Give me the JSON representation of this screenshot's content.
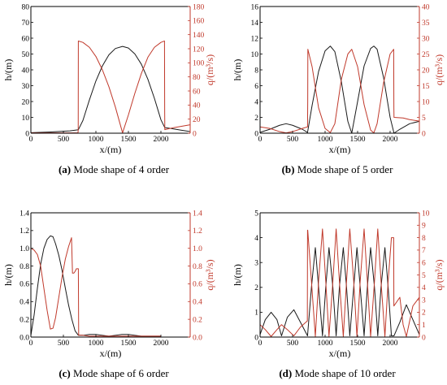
{
  "colors": {
    "h_series": "#1a1a1a",
    "q_series": "#c0392b",
    "axis": "#000000",
    "q_axis": "#c0392b"
  },
  "chart_data": [
    {
      "id": "a",
      "type": "line",
      "caption_prefix": "(a)",
      "caption_text": " Mode shape of 4 order",
      "xlabel": "x/(m)",
      "ylabel_left": "h/(m)",
      "ylabel_right": "q/(m³/s)",
      "xlim": [
        0,
        2450
      ],
      "xticks": [
        0,
        500,
        1000,
        1500,
        2000
      ],
      "ylim_left": [
        0,
        80
      ],
      "yticks_left": [
        0,
        10,
        20,
        30,
        40,
        50,
        60,
        70,
        80
      ],
      "ylim_right": [
        0,
        180
      ],
      "yticks_right": [
        0,
        20,
        40,
        60,
        80,
        100,
        120,
        140,
        160,
        180
      ],
      "grid": false,
      "series": [
        {
          "axis": "left",
          "x": [
            0,
            300,
            600,
            730,
            800,
            900,
            1000,
            1100,
            1200,
            1300,
            1410,
            1500,
            1600,
            1700,
            1800,
            1900,
            2000,
            2060,
            2150,
            2300,
            2450
          ],
          "y": [
            0.3,
            0.8,
            1.5,
            2.2,
            8.0,
            21.0,
            33.0,
            42.5,
            49.5,
            53.5,
            54.8,
            53.8,
            50.0,
            43.5,
            34.0,
            22.0,
            8.5,
            3.5,
            3.0,
            2.0,
            1.0
          ]
        },
        {
          "axis": "right",
          "x": [
            0,
            300,
            600,
            725,
            728,
            730,
            800,
            900,
            1000,
            1100,
            1200,
            1300,
            1410,
            1500,
            1600,
            1700,
            1800,
            1900,
            2000,
            2055,
            2058,
            2060,
            2200,
            2450
          ],
          "y": [
            0.5,
            0.5,
            0.5,
            0.5,
            6,
            131,
            129,
            122,
            109,
            90,
            66,
            37,
            0.5,
            26,
            57,
            85,
            108,
            122,
            129,
            131,
            30,
            5,
            8,
            12
          ]
        }
      ]
    },
    {
      "id": "b",
      "type": "line",
      "caption_prefix": "(b)",
      "caption_text": " Mode shape of 5 order",
      "xlabel": "x/(m)",
      "ylabel_left": "h/(m)",
      "ylabel_right": "q/(m³/s)",
      "xlim": [
        0,
        2450
      ],
      "xticks": [
        0,
        500,
        1000,
        1500,
        2000
      ],
      "ylim_left": [
        0,
        16
      ],
      "yticks_left": [
        0,
        2,
        4,
        6,
        8,
        10,
        12,
        14,
        16
      ],
      "ylim_right": [
        0,
        40
      ],
      "yticks_right": [
        0,
        5,
        10,
        15,
        20,
        25,
        30,
        35,
        40
      ],
      "grid": false,
      "series": [
        {
          "axis": "left",
          "x": [
            0,
            150,
            300,
            400,
            500,
            650,
            730,
            800,
            900,
            1000,
            1080,
            1150,
            1250,
            1350,
            1410,
            1500,
            1600,
            1700,
            1750,
            1800,
            1900,
            2000,
            2060,
            2150,
            2300,
            2450
          ],
          "y": [
            0.1,
            0.5,
            1.0,
            1.2,
            1.0,
            0.5,
            0.1,
            3.5,
            7.8,
            10.4,
            11.0,
            10.3,
            6.5,
            1.5,
            0.0,
            4.0,
            8.5,
            10.7,
            11.0,
            10.6,
            7.0,
            2.0,
            0.0,
            0.5,
            1.2,
            1.5
          ]
        },
        {
          "axis": "right",
          "x": [
            0,
            150,
            300,
            400,
            500,
            650,
            730,
            733,
            735,
            800,
            900,
            1000,
            1080,
            1150,
            1250,
            1350,
            1410,
            1500,
            1600,
            1700,
            1750,
            1800,
            1900,
            2000,
            2055,
            2058,
            2060,
            2200,
            2300,
            2450
          ],
          "y": [
            2.0,
            1.5,
            0.5,
            0.1,
            0.5,
            1.5,
            2.0,
            10,
            26.5,
            21,
            8,
            1.5,
            0.2,
            3,
            17,
            25,
            26.5,
            21,
            9,
            1,
            0.1,
            3,
            16,
            25,
            26.5,
            8,
            5,
            4.8,
            4.3,
            3.8
          ]
        }
      ]
    },
    {
      "id": "c",
      "type": "line",
      "caption_prefix": "(c)",
      "caption_text": " Mode shape of 6 order",
      "xlabel": "x/(m)",
      "ylabel_left": "h/(m)",
      "ylabel_right": "q/(m³/s)",
      "xlim": [
        0,
        2450
      ],
      "xticks": [
        0,
        500,
        1000,
        1500,
        2000
      ],
      "ylim_left": [
        0,
        1.4
      ],
      "yticks_left": [
        0.0,
        0.2,
        0.4,
        0.6,
        0.8,
        1.0,
        1.2,
        1.4
      ],
      "ylim_right": [
        0,
        1.4
      ],
      "yticks_right": [
        0.0,
        0.2,
        0.4,
        0.6,
        0.8,
        1.0,
        1.2,
        1.4
      ],
      "grid": false,
      "series": [
        {
          "axis": "left",
          "x": [
            0,
            50,
            100,
            150,
            200,
            250,
            300,
            340,
            380,
            430,
            480,
            530,
            580,
            630,
            680,
            730,
            800,
            900,
            1000,
            1100,
            1200,
            1300,
            1400,
            1500,
            1600,
            1700,
            1800,
            1900,
            2000
          ],
          "y": [
            0.02,
            0.25,
            0.55,
            0.82,
            1.0,
            1.1,
            1.14,
            1.13,
            1.05,
            0.92,
            0.75,
            0.55,
            0.36,
            0.2,
            0.07,
            0.02,
            0.02,
            0.03,
            0.03,
            0.02,
            0.01,
            0.02,
            0.03,
            0.03,
            0.02,
            0.01,
            0.01,
            0.01,
            0.01
          ]
        },
        {
          "axis": "right",
          "x": [
            0,
            50,
            100,
            150,
            200,
            250,
            300,
            340,
            380,
            430,
            480,
            530,
            580,
            625,
            640,
            660,
            680,
            700,
            730,
            735,
            800,
            900,
            1000,
            1100,
            1200,
            1300,
            1400,
            1500,
            1600,
            1700,
            1800,
            1900,
            2000
          ],
          "y": [
            1.0,
            0.98,
            0.93,
            0.8,
            0.55,
            0.3,
            0.09,
            0.1,
            0.22,
            0.45,
            0.68,
            0.88,
            1.02,
            1.12,
            0.72,
            0.72,
            0.74,
            0.77,
            0.77,
            0.02,
            0.02,
            0.01,
            0.01,
            0.01,
            0.01,
            0.01,
            0.01,
            0.01,
            0.01,
            0.01,
            0.01,
            0.01,
            0.01
          ]
        }
      ]
    },
    {
      "id": "d",
      "type": "line",
      "caption_prefix": "(d)",
      "caption_text": " Mode shape of 10 order",
      "xlabel": "x/(m)",
      "ylabel_left": "h/(m)",
      "ylabel_right": "q/(m³/s)",
      "xlim": [
        0,
        2450
      ],
      "xticks": [
        0,
        500,
        1000,
        1500,
        2000
      ],
      "ylim_left": [
        0,
        5
      ],
      "yticks_left": [
        0,
        1,
        2,
        3,
        4,
        5
      ],
      "ylim_right": [
        0,
        10
      ],
      "yticks_right": [
        0,
        1,
        2,
        3,
        4,
        5,
        6,
        7,
        8,
        9,
        10
      ],
      "grid": false,
      "series": [
        {
          "axis": "left",
          "x": [
            0,
            80,
            170,
            260,
            330,
            420,
            520,
            620,
            730,
            790,
            850,
            900,
            960,
            1010,
            1060,
            1120,
            1170,
            1220,
            1280,
            1330,
            1380,
            1440,
            1490,
            1540,
            1600,
            1650,
            1700,
            1760,
            1810,
            1860,
            1920,
            1970,
            2020,
            2060,
            2150,
            2250,
            2350,
            2450
          ],
          "y": [
            0.1,
            0.7,
            1.0,
            0.7,
            0.05,
            0.8,
            1.1,
            0.6,
            0.05,
            2.0,
            3.6,
            2.0,
            0.05,
            2.0,
            3.6,
            2.0,
            0.05,
            2.0,
            3.6,
            2.0,
            0.05,
            2.0,
            3.6,
            2.0,
            0.05,
            2.0,
            3.6,
            2.0,
            0.05,
            2.0,
            3.6,
            2.0,
            0.05,
            0.05,
            0.6,
            1.3,
            0.7,
            0.1
          ]
        },
        {
          "axis": "right",
          "x": [
            0,
            80,
            170,
            260,
            330,
            420,
            520,
            620,
            727,
            730,
            733,
            790,
            850,
            900,
            960,
            1010,
            1060,
            1120,
            1170,
            1220,
            1280,
            1330,
            1380,
            1440,
            1490,
            1540,
            1600,
            1650,
            1700,
            1760,
            1810,
            1860,
            1920,
            1970,
            2020,
            2055,
            2058,
            2150,
            2200,
            2250,
            2350,
            2450
          ],
          "y": [
            1.0,
            0.6,
            0.05,
            0.6,
            1.0,
            0.6,
            0.1,
            0.8,
            1.3,
            8.6,
            8.6,
            4.5,
            0.05,
            4.5,
            8.7,
            4.5,
            0.05,
            4.5,
            8.7,
            4.5,
            0.05,
            4.5,
            8.7,
            4.5,
            0.05,
            4.5,
            8.7,
            4.5,
            0.05,
            4.5,
            8.7,
            4.5,
            0.05,
            4.5,
            8.0,
            8.0,
            2.5,
            3.2,
            1.0,
            0.05,
            2.5,
            3.2
          ]
        }
      ]
    }
  ]
}
